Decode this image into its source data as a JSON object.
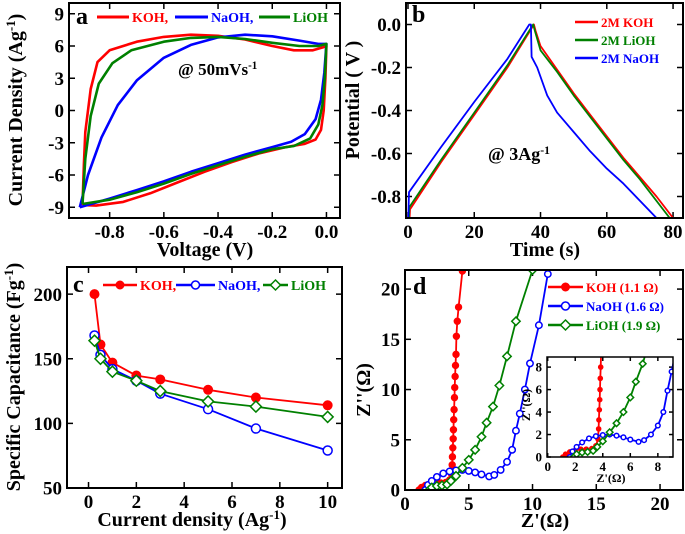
{
  "colors": {
    "KOH": "#ff0000",
    "NaOH": "#0000ff",
    "LiOH": "#008000",
    "axis": "#000000"
  },
  "chart_data": [
    {
      "panel": "a",
      "type": "line",
      "xlabel": {
        "main": "Voltage (V)",
        "sup": "",
        "end": ""
      },
      "ylabel": {
        "main": "Current Density (Ag",
        "sup": "-1",
        "end": ")"
      },
      "xlim": [
        -0.95,
        0.05
      ],
      "ylim": [
        -10,
        10
      ],
      "xticks": [
        "-0.8",
        "-0.6",
        "-0.4",
        "-0.2",
        "0.0"
      ],
      "yticks": [
        "-9",
        "-6",
        "-3",
        "0",
        "3",
        "6",
        "9"
      ],
      "grid": false,
      "legend": "top, horizontal",
      "annotation": {
        "main": "@ 50mVs",
        "sup": "-1"
      },
      "series": [
        {
          "name": "KOH,",
          "color": "#ff0000",
          "marker": "none",
          "points": [
            [
              -0.9,
              -8.8
            ],
            [
              -0.895,
              -5
            ],
            [
              -0.89,
              -2
            ],
            [
              -0.87,
              2
            ],
            [
              -0.845,
              4.5
            ],
            [
              -0.8,
              5.6
            ],
            [
              -0.7,
              6.4
            ],
            [
              -0.6,
              6.85
            ],
            [
              -0.5,
              7.05
            ],
            [
              -0.4,
              6.95
            ],
            [
              -0.3,
              6.6
            ],
            [
              -0.2,
              6.0
            ],
            [
              -0.12,
              5.6
            ],
            [
              -0.05,
              5.6
            ],
            [
              -0.01,
              5.9
            ],
            [
              0,
              6.0
            ],
            [
              -0.004,
              3
            ],
            [
              -0.01,
              0
            ],
            [
              -0.02,
              -1.8
            ],
            [
              -0.04,
              -2.7
            ],
            [
              -0.08,
              -3.1
            ],
            [
              -0.15,
              -3.4
            ],
            [
              -0.25,
              -4.0
            ],
            [
              -0.35,
              -4.8
            ],
            [
              -0.45,
              -5.7
            ],
            [
              -0.55,
              -6.7
            ],
            [
              -0.65,
              -7.7
            ],
            [
              -0.75,
              -8.5
            ],
            [
              -0.85,
              -8.85
            ],
            [
              -0.9,
              -8.8
            ]
          ]
        },
        {
          "name": "NaOH,",
          "color": "#0000ff",
          "marker": "none",
          "points": [
            [
              -0.91,
              -9
            ],
            [
              -0.88,
              -6
            ],
            [
              -0.83,
              -2.5
            ],
            [
              -0.77,
              0.5
            ],
            [
              -0.7,
              2.8
            ],
            [
              -0.6,
              4.9
            ],
            [
              -0.5,
              6.1
            ],
            [
              -0.4,
              6.8
            ],
            [
              -0.3,
              7.05
            ],
            [
              -0.2,
              6.9
            ],
            [
              -0.1,
              6.5
            ],
            [
              -0.03,
              6.2
            ],
            [
              0,
              6.2
            ],
            [
              -0.008,
              3.5
            ],
            [
              -0.02,
              1
            ],
            [
              -0.04,
              -0.8
            ],
            [
              -0.08,
              -2.2
            ],
            [
              -0.13,
              -2.9
            ],
            [
              -0.2,
              -3.4
            ],
            [
              -0.3,
              -4.1
            ],
            [
              -0.4,
              -4.9
            ],
            [
              -0.5,
              -5.7
            ],
            [
              -0.6,
              -6.6
            ],
            [
              -0.7,
              -7.4
            ],
            [
              -0.8,
              -8.2
            ],
            [
              -0.91,
              -9
            ]
          ]
        },
        {
          "name": "LiOH",
          "color": "#008000",
          "marker": "none",
          "points": [
            [
              -0.9,
              -8.7
            ],
            [
              -0.89,
              -4.5
            ],
            [
              -0.87,
              -0.5
            ],
            [
              -0.84,
              2.5
            ],
            [
              -0.79,
              4.4
            ],
            [
              -0.72,
              5.6
            ],
            [
              -0.6,
              6.4
            ],
            [
              -0.5,
              6.75
            ],
            [
              -0.4,
              6.85
            ],
            [
              -0.3,
              6.65
            ],
            [
              -0.2,
              6.3
            ],
            [
              -0.1,
              6.0
            ],
            [
              -0.03,
              6.0
            ],
            [
              0,
              6.2
            ],
            [
              -0.006,
              3
            ],
            [
              -0.015,
              0.5
            ],
            [
              -0.03,
              -1.3
            ],
            [
              -0.06,
              -2.6
            ],
            [
              -0.12,
              -3.3
            ],
            [
              -0.2,
              -3.6
            ],
            [
              -0.3,
              -4.3
            ],
            [
              -0.4,
              -5.1
            ],
            [
              -0.5,
              -5.9
            ],
            [
              -0.6,
              -6.8
            ],
            [
              -0.7,
              -7.6
            ],
            [
              -0.8,
              -8.3
            ],
            [
              -0.9,
              -8.7
            ]
          ]
        }
      ]
    },
    {
      "panel": "b",
      "type": "line",
      "xlabel": {
        "main": "Time (s)",
        "sup": "",
        "end": ""
      },
      "ylabel": {
        "main": "Potential ( V )",
        "sup": "",
        "end": ""
      },
      "xlim": [
        -0.6,
        83
      ],
      "ylim": [
        -0.9,
        0.1
      ],
      "xticks": [
        "0",
        "20",
        "40",
        "60",
        "80"
      ],
      "yticks": [
        "0.0",
        "-0.2",
        "-0.4",
        "-0.6",
        "-0.8"
      ],
      "grid": false,
      "legend": "top-right",
      "annotation": {
        "main": "@ 3Ag",
        "sup": "-1"
      },
      "series": [
        {
          "name": "2M KOH",
          "color": "#ff0000",
          "marker": "none",
          "points": [
            [
              0.5,
              -0.9
            ],
            [
              0.6,
              -0.86
            ],
            [
              10,
              -0.64
            ],
            [
              20,
              -0.42
            ],
            [
              30,
              -0.2
            ],
            [
              38,
              0
            ],
            [
              38.5,
              -0.03
            ],
            [
              40,
              -0.1
            ],
            [
              45,
              -0.21
            ],
            [
              50,
              -0.32
            ],
            [
              55,
              -0.42
            ],
            [
              60,
              -0.52
            ],
            [
              65,
              -0.62
            ],
            [
              70,
              -0.71
            ],
            [
              75,
              -0.8
            ],
            [
              80,
              -0.9
            ]
          ]
        },
        {
          "name": "2M LiOH",
          "color": "#008000",
          "marker": "none",
          "points": [
            [
              0.3,
              -0.9
            ],
            [
              0.4,
              -0.85
            ],
            [
              10,
              -0.63
            ],
            [
              20,
              -0.41
            ],
            [
              30,
              -0.19
            ],
            [
              37.8,
              0
            ],
            [
              38.3,
              -0.03
            ],
            [
              40,
              -0.12
            ],
            [
              45,
              -0.22
            ],
            [
              50,
              -0.33
            ],
            [
              55,
              -0.43
            ],
            [
              60,
              -0.53
            ],
            [
              65,
              -0.63
            ],
            [
              70,
              -0.72
            ],
            [
              79,
              -0.9
            ]
          ]
        },
        {
          "name": "2M NaOH",
          "color": "#0000ff",
          "marker": "none",
          "points": [
            [
              0.1,
              -0.9
            ],
            [
              0.3,
              -0.78
            ],
            [
              10,
              -0.57
            ],
            [
              20,
              -0.36
            ],
            [
              30,
              -0.16
            ],
            [
              36.6,
              0
            ],
            [
              37.1,
              0
            ],
            [
              37.3,
              -0.15
            ],
            [
              39,
              -0.2
            ],
            [
              42,
              -0.33
            ],
            [
              45,
              -0.41
            ],
            [
              50,
              -0.5
            ],
            [
              55,
              -0.59
            ],
            [
              60,
              -0.67
            ],
            [
              65,
              -0.74
            ],
            [
              70,
              -0.82
            ],
            [
              75,
              -0.9
            ]
          ]
        }
      ]
    },
    {
      "panel": "c",
      "type": "line",
      "xlabel": {
        "main": "Current density (Ag",
        "sup": "-1",
        "end": ")"
      },
      "ylabel": {
        "main": "Specific Capacitance (Fg",
        "sup": "-1",
        "end": ")"
      },
      "xlim": [
        -0.9,
        10.6
      ],
      "ylim": [
        50,
        221
      ],
      "xticks": [
        "0",
        "2",
        "4",
        "6",
        "8",
        "10"
      ],
      "yticks": [
        "50",
        "100",
        "150",
        "200"
      ],
      "grid": false,
      "legend": "top, horizontal",
      "series": [
        {
          "name": "KOH,",
          "color": "#ff0000",
          "marker": "filled-circle",
          "points": [
            [
              0.25,
              200
            ],
            [
              0.5,
              161
            ],
            [
              1,
              147
            ],
            [
              2,
              137
            ],
            [
              3,
              134
            ],
            [
              5,
              126
            ],
            [
              7,
              120
            ],
            [
              10,
              114
            ]
          ]
        },
        {
          "name": "NaOH,",
          "color": "#0000ff",
          "marker": "open-circle",
          "points": [
            [
              0.25,
              168
            ],
            [
              0.5,
              153
            ],
            [
              1,
              142
            ],
            [
              2,
              133
            ],
            [
              3,
              123
            ],
            [
              5,
              111
            ],
            [
              7,
              96
            ],
            [
              10,
              79
            ]
          ]
        },
        {
          "name": "LiOH",
          "color": "#008000",
          "marker": "open-diamond",
          "points": [
            [
              0.25,
              164
            ],
            [
              0.5,
              150
            ],
            [
              1,
              140
            ],
            [
              2,
              133
            ],
            [
              3,
              125
            ],
            [
              5,
              117
            ],
            [
              7,
              113
            ],
            [
              10,
              105
            ]
          ]
        }
      ]
    },
    {
      "panel": "d",
      "type": "scatter",
      "xlabel": {
        "main": "Z'(Ω)",
        "sup": "",
        "end": ""
      },
      "ylabel": {
        "main": "Z''(Ω)",
        "sup": "",
        "end": ""
      },
      "xlim": [
        0,
        21.8
      ],
      "ylim": [
        0,
        21.9
      ],
      "xticks": [
        "0",
        "5",
        "10",
        "15",
        "20"
      ],
      "yticks": [
        "0",
        "5",
        "10",
        "15",
        "20"
      ],
      "grid": false,
      "legend": "top-right",
      "inset": {
        "xlabel": "Z'(Ω)",
        "ylabel": "Z''(Ω)",
        "xlim": [
          -0.05,
          9.1
        ],
        "ylim": [
          0,
          8.9
        ],
        "xticks": [
          "0",
          "2",
          "4",
          "6",
          "8"
        ],
        "yticks": [
          "0",
          "2",
          "4",
          "6",
          "8"
        ]
      },
      "series": [
        {
          "name": "KOH (1.1 Ω)",
          "color": "#ff0000",
          "marker": "filled-circle",
          "points": [
            [
              1.1,
              0
            ],
            [
              1.3,
              0.25
            ],
            [
              1.6,
              0.45
            ],
            [
              2,
              0.6
            ],
            [
              2.4,
              0.7
            ],
            [
              2.8,
              0.7
            ],
            [
              3.2,
              0.75
            ],
            [
              3.5,
              1.0
            ],
            [
              3.65,
              1.6
            ],
            [
              3.7,
              2.5
            ],
            [
              3.72,
              3.3
            ],
            [
              3.75,
              4.2
            ],
            [
              3.78,
              5.1
            ],
            [
              3.8,
              6
            ],
            [
              3.82,
              7
            ],
            [
              3.85,
              8
            ],
            [
              3.88,
              9.2
            ],
            [
              3.9,
              10.2
            ],
            [
              3.93,
              11.3
            ],
            [
              3.96,
              12.4
            ],
            [
              4.0,
              13.5
            ],
            [
              4.03,
              15.3
            ],
            [
              4.1,
              16.8
            ],
            [
              4.2,
              18.2
            ],
            [
              4.5,
              21.8
            ]
          ]
        },
        {
          "name": "NaOH (1.6 Ω)",
          "color": "#0000ff",
          "marker": "open-circle",
          "points": [
            [
              1.6,
              0
            ],
            [
              1.8,
              0.5
            ],
            [
              2.1,
              0.9
            ],
            [
              2.5,
              1.3
            ],
            [
              3,
              1.65
            ],
            [
              3.5,
              1.85
            ],
            [
              4,
              1.95
            ],
            [
              4.5,
              2.0
            ],
            [
              5,
              1.9
            ],
            [
              5.5,
              1.75
            ],
            [
              6,
              1.55
            ],
            [
              6.6,
              1.35
            ],
            [
              7,
              1.5
            ],
            [
              7.5,
              2.0
            ],
            [
              8,
              2.8
            ],
            [
              8.4,
              4.0
            ],
            [
              8.7,
              5.9
            ],
            [
              9.0,
              7.6
            ],
            [
              9.4,
              10.0
            ],
            [
              9.8,
              12.6
            ],
            [
              10.5,
              16.4
            ],
            [
              11.2,
              21.5
            ]
          ]
        },
        {
          "name": "LiOH (1.9 Ω)",
          "color": "#008000",
          "marker": "open-diamond",
          "points": [
            [
              1.9,
              0
            ],
            [
              2.1,
              0.25
            ],
            [
              2.5,
              0.4
            ],
            [
              2.9,
              0.45
            ],
            [
              3.3,
              0.55
            ],
            [
              3.6,
              0.9
            ],
            [
              4.0,
              1.4
            ],
            [
              4.5,
              2.2
            ],
            [
              5,
              3.0
            ],
            [
              5.5,
              4.0
            ],
            [
              6,
              5.3
            ],
            [
              6.4,
              6.7
            ],
            [
              6.9,
              8.3
            ],
            [
              7.4,
              10.4
            ],
            [
              8.0,
              13.3
            ],
            [
              8.7,
              16.8
            ],
            [
              10.0,
              21.9
            ]
          ]
        }
      ]
    }
  ]
}
